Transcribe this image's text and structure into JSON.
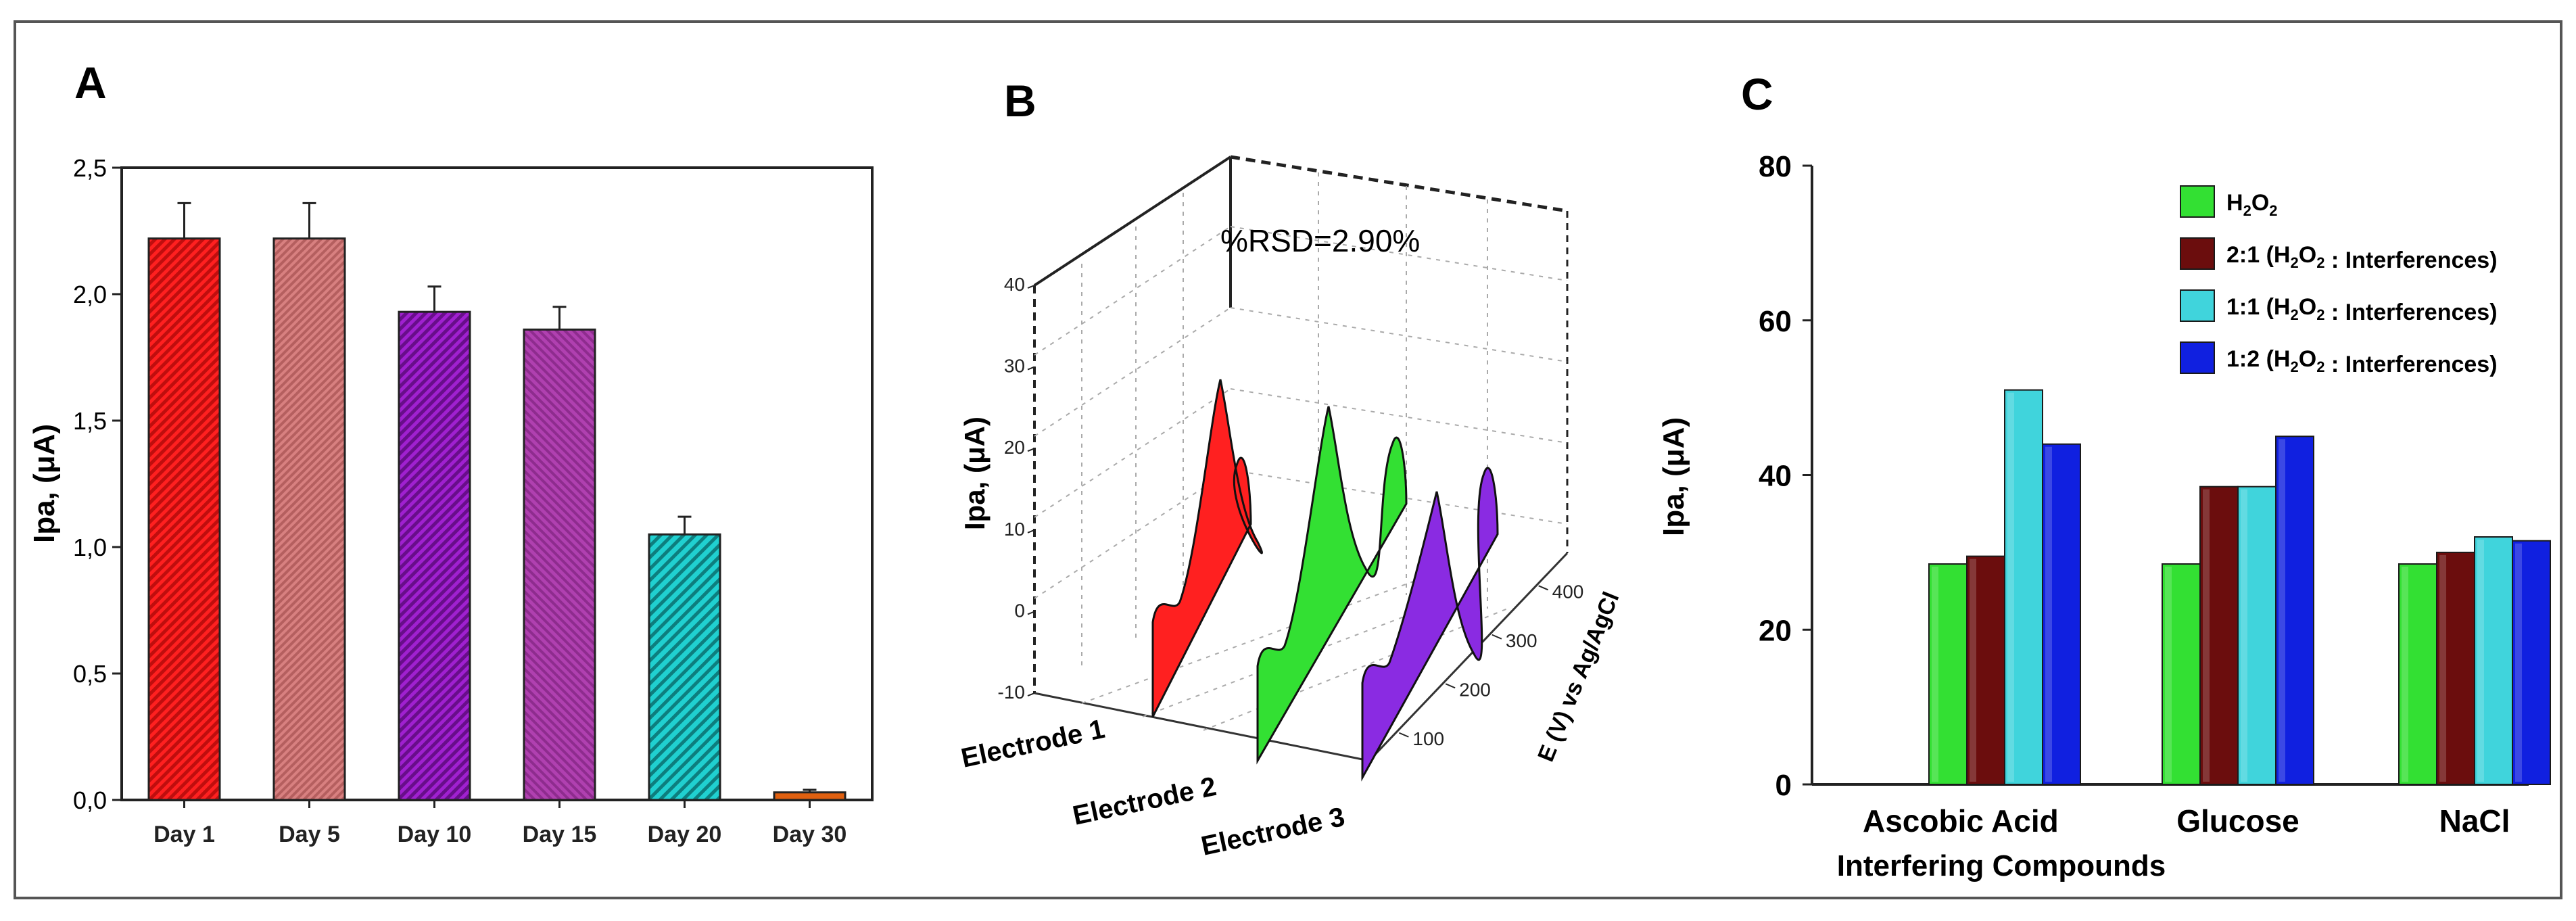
{
  "colors": {
    "red": "#ff2020",
    "salmon": "#cc7070",
    "purple": "#a020d0",
    "magenta": "#a830a8",
    "cyan": "#20d0d0",
    "orange": "#e06010",
    "green": "#33e033",
    "maroon": "#6b0d0d",
    "lightcyan": "#40d4dc",
    "blue": "#1020e0",
    "violet": "#8a2be2"
  },
  "chart_data": [
    {
      "panel_label": "A",
      "type": "bar",
      "title": "",
      "xlabel": "",
      "ylabel": "Ipa, (μA)",
      "ylim": [
        0,
        2.5
      ],
      "yticks": [
        "0,0",
        "0,5",
        "1,0",
        "1,5",
        "2,0",
        "2,5"
      ],
      "categories": [
        "Day 1",
        "Day 5",
        "Day 10",
        "Day 15",
        "Day 20",
        "Day 30"
      ],
      "values": [
        2.22,
        2.22,
        1.93,
        1.86,
        1.05,
        0.03
      ],
      "errors": [
        0.14,
        0.14,
        0.1,
        0.09,
        0.07,
        0.01
      ]
    },
    {
      "panel_label": "B",
      "type": "line",
      "subtype": "3d-waterfall",
      "annotation": "%RSD=2.90%",
      "zlabel": "Ipa, (μA)",
      "zticks": [
        "-10",
        "0",
        "10",
        "20",
        "30",
        "40"
      ],
      "zlim": [
        -10,
        40
      ],
      "ylabel": "E (V) vs Ag/AgCl",
      "yticks": [
        "100",
        "200",
        "300",
        "400"
      ],
      "series": [
        {
          "name": "Electrode 1",
          "peak": 30
        },
        {
          "name": "Electrode 2",
          "peak": 32
        },
        {
          "name": "Electrode 3",
          "peak": 24
        }
      ]
    },
    {
      "panel_label": "C",
      "type": "bar",
      "xlabel": "Interfering Compounds",
      "ylabel": "Ipa, (μA)",
      "ylim": [
        0,
        80
      ],
      "yticks": [
        "0",
        "20",
        "40",
        "60",
        "80"
      ],
      "categories": [
        "Ascobic Acid",
        "Glucose",
        "NaCl"
      ],
      "series": [
        {
          "name": "H2O2",
          "values": [
            28.5,
            28.5,
            28.5
          ]
        },
        {
          "name": "2:1 (H2O2 : Interferences)",
          "values": [
            29.5,
            38.5,
            30
          ]
        },
        {
          "name": "1:1 (H2O2 : Interferences)",
          "values": [
            51,
            38.5,
            32
          ]
        },
        {
          "name": "1:2 (H2O2 : Interferences)",
          "values": [
            44,
            45,
            31.5
          ]
        }
      ],
      "legend_location": "top-right"
    }
  ]
}
